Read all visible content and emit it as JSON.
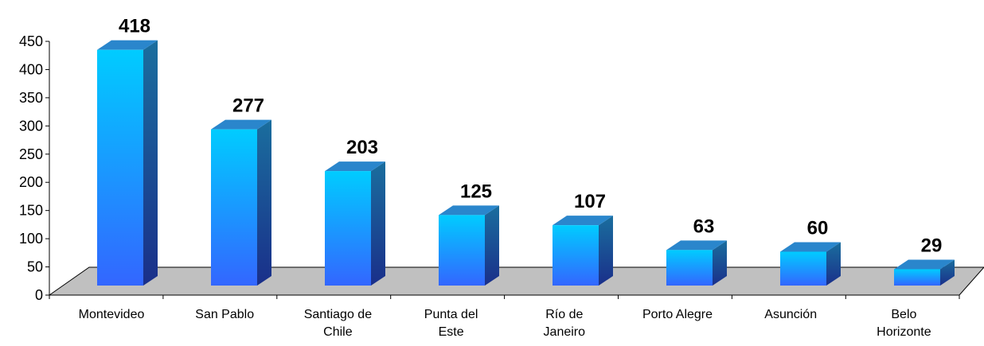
{
  "chart_data": {
    "type": "bar3d",
    "categories": [
      "Montevideo",
      "San Pablo",
      "Santiago de Chile",
      "Punta del Este",
      "Río de Janeiro",
      "Porto Alegre",
      "Asunción",
      "Belo Horizonte"
    ],
    "values": [
      418,
      277,
      203,
      125,
      107,
      63,
      60,
      29
    ],
    "color": "#1eaaff",
    "ylim": [
      0,
      450
    ],
    "yticks": [
      0,
      50,
      100,
      150,
      200,
      250,
      300,
      350,
      400,
      450
    ]
  }
}
